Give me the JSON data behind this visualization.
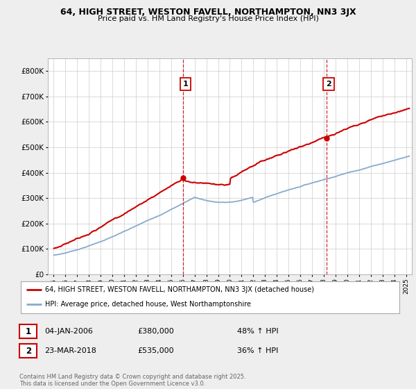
{
  "title": "64, HIGH STREET, WESTON FAVELL, NORTHAMPTON, NN3 3JX",
  "subtitle": "Price paid vs. HM Land Registry's House Price Index (HPI)",
  "red_label": "64, HIGH STREET, WESTON FAVELL, NORTHAMPTON, NN3 3JX (detached house)",
  "blue_label": "HPI: Average price, detached house, West Northamptonshire",
  "marker1_date": "04-JAN-2006",
  "marker1_price": "£380,000",
  "marker1_pct": "48% ↑ HPI",
  "marker2_date": "23-MAR-2018",
  "marker2_price": "£535,000",
  "marker2_pct": "36% ↑ HPI",
  "marker1_x": 2006.01,
  "marker2_x": 2018.22,
  "marker1_y": 380000,
  "marker2_y": 535000,
  "ylim": [
    0,
    850000
  ],
  "xlim": [
    1994.5,
    2025.5
  ],
  "yticks": [
    0,
    100000,
    200000,
    300000,
    400000,
    500000,
    600000,
    700000,
    800000
  ],
  "ytick_labels": [
    "£0",
    "£100K",
    "£200K",
    "£300K",
    "£400K",
    "£500K",
    "£600K",
    "£700K",
    "£800K"
  ],
  "xticks": [
    1995,
    1996,
    1997,
    1998,
    1999,
    2000,
    2001,
    2002,
    2003,
    2004,
    2005,
    2006,
    2007,
    2008,
    2009,
    2010,
    2011,
    2012,
    2013,
    2014,
    2015,
    2016,
    2017,
    2018,
    2019,
    2020,
    2021,
    2022,
    2023,
    2024,
    2025
  ],
  "footer": "Contains HM Land Registry data © Crown copyright and database right 2025.\nThis data is licensed under the Open Government Licence v3.0.",
  "bg_color": "#eeeeee",
  "plot_bg_color": "#ffffff",
  "red_color": "#cc0000",
  "blue_color": "#88aacc",
  "grid_color": "#cccccc",
  "annotation_box_color": "#cc0000"
}
